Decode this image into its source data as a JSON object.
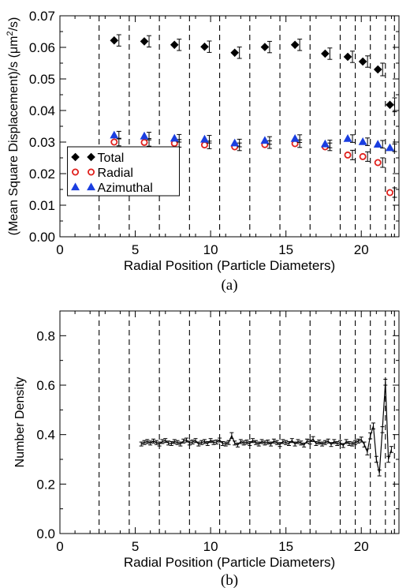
{
  "chart_data": [
    {
      "type": "scatter",
      "caption": "(a)",
      "xlabel": "Radial Position (Particle Diameters)",
      "ylabel_main": "(Mean Square Displacement)/s (μm",
      "ylabel_sup": "2",
      "ylabel_tail": "/s)",
      "xlim": [
        0,
        22.5
      ],
      "ylim": [
        0,
        0.07
      ],
      "x_ticks": [
        0,
        5,
        10,
        15,
        20
      ],
      "y_ticks": [
        0.0,
        0.01,
        0.02,
        0.03,
        0.04,
        0.05,
        0.06,
        0.07
      ],
      "y_tick_labels": [
        "0.00",
        "0.01",
        "0.02",
        "0.03",
        "0.04",
        "0.05",
        "0.06",
        "0.07"
      ],
      "vlines": [
        2.6,
        4.6,
        6.6,
        8.6,
        10.6,
        12.6,
        14.6,
        16.6,
        18.6,
        19.6,
        20.6,
        21.6,
        22.2
      ],
      "legend_position": "bottom-left",
      "colors": {
        "total": "#000000",
        "radial": "#e0201c",
        "azimuthal": "#1a3ee0"
      },
      "series": [
        {
          "name": "Total",
          "marker": "diamond",
          "x": [
            3.6,
            5.6,
            7.6,
            9.6,
            11.6,
            13.6,
            15.6,
            17.6,
            19.1,
            20.1,
            21.1,
            21.9
          ],
          "y": [
            0.0622,
            0.0619,
            0.0608,
            0.0602,
            0.0583,
            0.0601,
            0.0608,
            0.058,
            0.057,
            0.0555,
            0.053,
            0.0418
          ],
          "err": [
            0.0018,
            0.0018,
            0.0018,
            0.0018,
            0.0018,
            0.0018,
            0.0018,
            0.0018,
            0.0018,
            0.0018,
            0.002,
            0.0022
          ]
        },
        {
          "name": "Radial",
          "marker": "circle",
          "x": [
            3.6,
            5.6,
            7.6,
            9.6,
            11.6,
            13.6,
            15.6,
            17.6,
            19.1,
            20.1,
            21.1,
            21.9
          ],
          "y": [
            0.03,
            0.0299,
            0.0296,
            0.0291,
            0.0285,
            0.0292,
            0.0295,
            0.0285,
            0.0259,
            0.0254,
            0.0235,
            0.014
          ],
          "err": [
            0.0012,
            0.0012,
            0.0012,
            0.0012,
            0.0012,
            0.0012,
            0.0012,
            0.0012,
            0.0015,
            0.0015,
            0.0015,
            0.0015
          ]
        },
        {
          "name": "Azimuthal",
          "marker": "triangle",
          "x": [
            3.6,
            5.6,
            7.6,
            9.6,
            11.6,
            13.6,
            15.6,
            17.6,
            19.1,
            20.1,
            21.1,
            21.9
          ],
          "y": [
            0.0322,
            0.0319,
            0.0312,
            0.0309,
            0.0297,
            0.0305,
            0.0311,
            0.0294,
            0.0311,
            0.0301,
            0.0293,
            0.0282
          ],
          "err": [
            0.0012,
            0.0012,
            0.0012,
            0.0012,
            0.0012,
            0.0012,
            0.0012,
            0.0012,
            0.0012,
            0.0012,
            0.0012,
            0.0012
          ]
        }
      ]
    },
    {
      "type": "line",
      "caption": "(b)",
      "xlabel": "Radial Position (Particle Diameters)",
      "ylabel": "Number Density",
      "xlim": [
        0,
        22.5
      ],
      "ylim": [
        0,
        0.9
      ],
      "x_ticks": [
        0,
        5,
        10,
        15,
        20
      ],
      "y_ticks": [
        0.0,
        0.2,
        0.4,
        0.6,
        0.8
      ],
      "y_tick_labels": [
        "0.0",
        "0.2",
        "0.4",
        "0.6",
        "0.8"
      ],
      "vlines": [
        2.6,
        4.6,
        6.6,
        8.6,
        10.6,
        12.6,
        14.6,
        16.6,
        18.6,
        19.6,
        20.6,
        21.6,
        22.2
      ],
      "series": [
        {
          "name": "",
          "x": [
            5.4,
            5.6,
            5.8,
            6.0,
            6.2,
            6.4,
            6.6,
            6.8,
            7.0,
            7.2,
            7.4,
            7.6,
            7.8,
            8.0,
            8.2,
            8.4,
            8.6,
            8.8,
            9.0,
            9.2,
            9.4,
            9.6,
            9.8,
            10.0,
            10.2,
            10.4,
            10.6,
            10.8,
            11.0,
            11.2,
            11.4,
            11.6,
            11.8,
            12.0,
            12.2,
            12.4,
            12.6,
            12.8,
            13.0,
            13.2,
            13.4,
            13.6,
            13.8,
            14.0,
            14.2,
            14.4,
            14.6,
            14.8,
            15.0,
            15.2,
            15.4,
            15.6,
            15.8,
            16.0,
            16.2,
            16.4,
            16.6,
            16.8,
            17.0,
            17.2,
            17.4,
            17.6,
            17.8,
            18.0,
            18.2,
            18.4,
            18.6,
            18.8,
            19.0,
            19.2,
            19.4,
            19.6,
            19.8,
            20.0,
            20.2,
            20.4,
            20.6,
            20.8,
            21.0,
            21.2,
            21.4,
            21.6,
            21.8,
            22.0
          ],
          "y": [
            0.362,
            0.368,
            0.372,
            0.366,
            0.374,
            0.368,
            0.362,
            0.372,
            0.376,
            0.366,
            0.364,
            0.372,
            0.368,
            0.362,
            0.374,
            0.378,
            0.366,
            0.37,
            0.376,
            0.362,
            0.368,
            0.372,
            0.364,
            0.376,
            0.368,
            0.37,
            0.378,
            0.364,
            0.362,
            0.368,
            0.396,
            0.366,
            0.358,
            0.372,
            0.366,
            0.37,
            0.364,
            0.376,
            0.368,
            0.362,
            0.372,
            0.366,
            0.37,
            0.362,
            0.374,
            0.368,
            0.36,
            0.372,
            0.368,
            0.364,
            0.376,
            0.362,
            0.372,
            0.366,
            0.358,
            0.374,
            0.37,
            0.382,
            0.364,
            0.37,
            0.362,
            0.368,
            0.374,
            0.36,
            0.372,
            0.364,
            0.368,
            0.356,
            0.372,
            0.364,
            0.362,
            0.368,
            0.374,
            0.38,
            0.36,
            0.33,
            0.395,
            0.435,
            0.3,
            0.245,
            0.42,
            0.612,
            0.3,
            0.34
          ],
          "err": [
            0.008,
            0.008,
            0.008,
            0.008,
            0.008,
            0.008,
            0.008,
            0.008,
            0.008,
            0.008,
            0.008,
            0.008,
            0.008,
            0.008,
            0.008,
            0.008,
            0.008,
            0.008,
            0.008,
            0.008,
            0.008,
            0.008,
            0.008,
            0.008,
            0.008,
            0.008,
            0.008,
            0.008,
            0.008,
            0.008,
            0.012,
            0.008,
            0.008,
            0.008,
            0.008,
            0.008,
            0.008,
            0.008,
            0.008,
            0.008,
            0.008,
            0.008,
            0.008,
            0.008,
            0.008,
            0.008,
            0.008,
            0.008,
            0.008,
            0.008,
            0.008,
            0.008,
            0.008,
            0.008,
            0.008,
            0.008,
            0.008,
            0.01,
            0.008,
            0.008,
            0.008,
            0.008,
            0.008,
            0.008,
            0.008,
            0.008,
            0.008,
            0.008,
            0.008,
            0.008,
            0.008,
            0.008,
            0.008,
            0.01,
            0.01,
            0.012,
            0.012,
            0.012,
            0.012,
            0.012,
            0.012,
            0.012,
            0.012,
            0.012
          ]
        }
      ]
    }
  ]
}
